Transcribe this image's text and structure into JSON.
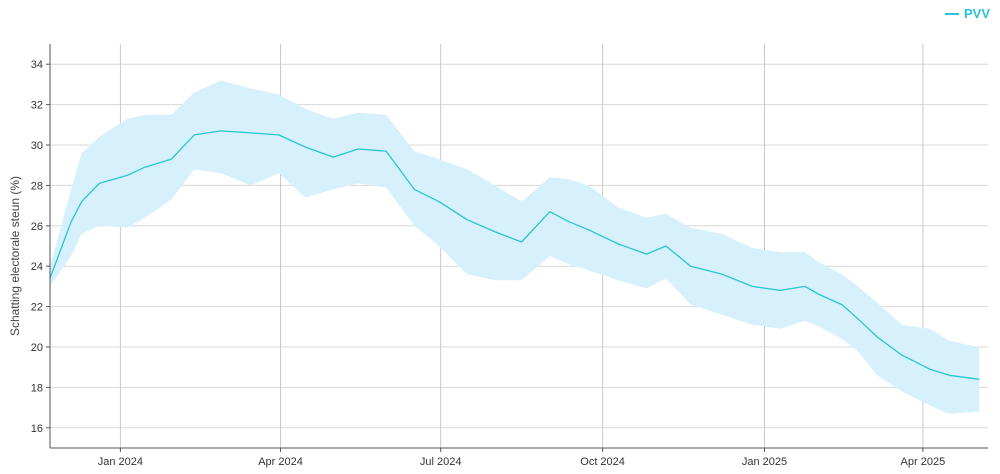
{
  "chart_data": {
    "type": "line",
    "title": "",
    "xlabel": "",
    "ylabel": "Schatting electorale steun (%)",
    "ylim": [
      15,
      35
    ],
    "xlim": [
      "2023-11-22",
      "2025-05-08"
    ],
    "yticks": [
      16,
      18,
      20,
      22,
      24,
      26,
      28,
      30,
      32,
      34
    ],
    "xticks": [
      {
        "date": "2024-01-01",
        "label": "Jan 2024"
      },
      {
        "date": "2024-04-01",
        "label": "Apr 2024"
      },
      {
        "date": "2024-07-01",
        "label": "Jul 2024"
      },
      {
        "date": "2024-10-01",
        "label": "Oct 2024"
      },
      {
        "date": "2025-01-01",
        "label": "Jan 2025"
      },
      {
        "date": "2025-04-01",
        "label": "Apr 2025"
      }
    ],
    "grid": true,
    "legend": "top-right",
    "series": [
      {
        "name": "PVV",
        "color": "#29c4d6",
        "band_color": "#d6f1fb",
        "x": [
          "2023-11-22",
          "2023-12-04",
          "2023-12-10",
          "2023-12-20",
          "2024-01-05",
          "2024-01-15",
          "2024-01-30",
          "2024-02-12",
          "2024-02-27",
          "2024-03-15",
          "2024-03-31",
          "2024-04-15",
          "2024-05-01",
          "2024-05-15",
          "2024-05-31",
          "2024-06-16",
          "2024-06-30",
          "2024-07-16",
          "2024-08-01",
          "2024-08-16",
          "2024-09-01",
          "2024-09-12",
          "2024-09-23",
          "2024-10-10",
          "2024-10-26",
          "2024-11-06",
          "2024-11-20",
          "2024-12-08",
          "2024-12-25",
          "2025-01-10",
          "2025-01-24",
          "2025-02-01",
          "2025-02-14",
          "2025-02-23",
          "2025-03-06",
          "2025-03-20",
          "2025-04-05",
          "2025-04-16",
          "2025-05-03"
        ],
        "y": [
          23.4,
          26.2,
          27.2,
          28.1,
          28.5,
          28.9,
          29.3,
          30.5,
          30.7,
          30.6,
          30.5,
          29.9,
          29.4,
          29.8,
          29.7,
          27.8,
          27.2,
          26.3,
          25.7,
          25.2,
          26.7,
          26.2,
          25.8,
          25.1,
          24.6,
          25.0,
          24.0,
          23.6,
          23.0,
          22.8,
          23.0,
          22.6,
          22.1,
          21.4,
          20.5,
          19.6,
          18.9,
          18.6,
          18.4
        ],
        "lower": [
          23.0,
          24.5,
          25.6,
          26.0,
          25.9,
          26.4,
          27.3,
          28.8,
          28.6,
          28.0,
          28.6,
          27.4,
          27.8,
          28.1,
          27.9,
          26.0,
          25.0,
          23.6,
          23.3,
          23.3,
          24.5,
          24.1,
          23.8,
          23.3,
          22.9,
          23.4,
          22.1,
          21.6,
          21.1,
          20.9,
          21.3,
          21.0,
          20.4,
          19.8,
          18.6,
          17.8,
          17.1,
          16.7,
          16.8
        ],
        "upper": [
          24.0,
          27.8,
          29.6,
          30.4,
          31.3,
          31.5,
          31.5,
          32.6,
          33.2,
          32.8,
          32.5,
          31.8,
          31.3,
          31.6,
          31.5,
          29.7,
          29.3,
          28.8,
          28.0,
          27.2,
          28.4,
          28.3,
          28.0,
          26.9,
          26.4,
          26.6,
          25.9,
          25.6,
          24.9,
          24.7,
          24.7,
          24.2,
          23.6,
          23.0,
          22.2,
          21.1,
          20.9,
          20.3,
          20.0
        ]
      }
    ]
  }
}
